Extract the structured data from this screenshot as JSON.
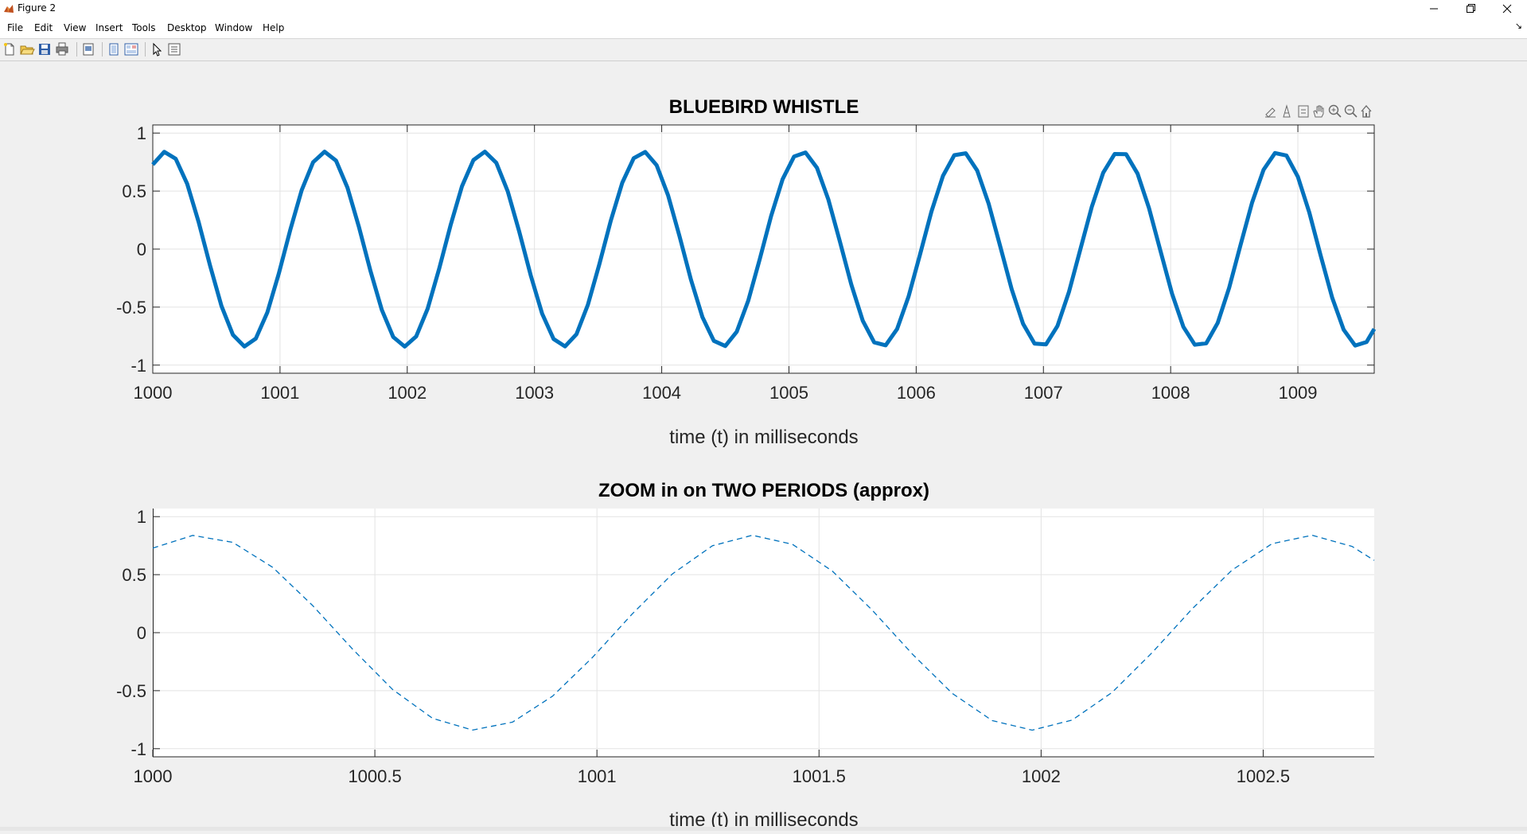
{
  "window": {
    "title": "Figure 2",
    "controls": [
      "minimize",
      "restore",
      "close"
    ]
  },
  "menu": [
    "File",
    "Edit",
    "View",
    "Insert",
    "Tools",
    "Desktop",
    "Window",
    "Help"
  ],
  "toolbar": [
    "new-figure-icon",
    "open-file-icon",
    "save-icon",
    "print-icon",
    "print-preview-icon",
    "hide-plot-tools-icon",
    "show-plot-tools-icon",
    "edit-plot-arrow-icon",
    "property-inspector-icon"
  ],
  "axes_toolbar": [
    "brush-icon",
    "data-tips-icon",
    "rotate-icon",
    "pan-hand-icon",
    "zoom-in-icon",
    "zoom-out-icon",
    "home-restore-icon"
  ],
  "colors": {
    "series": "#0072BD",
    "axes_bg": "#ffffff",
    "figure_bg": "#f0f0f0",
    "grid": "#e3e3e3"
  },
  "chart_data": [
    {
      "type": "line",
      "title": "BLUEBIRD WHISTLE",
      "xlabel": "time (t) in milliseconds",
      "ylabel": "",
      "xlim": [
        1000,
        1009.6
      ],
      "ylim": [
        -1.07,
        1.07
      ],
      "xticks": [
        1000,
        1001,
        1002,
        1003,
        1004,
        1005,
        1006,
        1007,
        1008,
        1009
      ],
      "xtick_labels": [
        "1000",
        "1001",
        "1002",
        "1003",
        "1004",
        "1005",
        "1006",
        "1007",
        "1008",
        "1009"
      ],
      "yticks": [
        1,
        0.5,
        0,
        -0.5,
        -1
      ],
      "ytick_labels": [
        "1",
        "0.5",
        "0",
        "-0.5",
        "-1"
      ],
      "grid": true,
      "line_style": "solid",
      "line_width": "thick",
      "signal": {
        "amplitude": 0.84,
        "frequency_khz": 0.8,
        "phase": 1.05,
        "sample_period_ms": 0.09
      },
      "series": [
        {
          "values": "sampled sine, amplitude 0.84, period 1.25 ms"
        }
      ]
    },
    {
      "type": "line",
      "title": "ZOOM in on TWO PERIODS (approx)",
      "xlabel": "time (t) in milliseconds",
      "ylabel": "",
      "xlim": [
        1000,
        1002.75
      ],
      "ylim": [
        -1.07,
        1.07
      ],
      "xticks": [
        1000,
        1000.5,
        1001,
        1001.5,
        1002,
        1002.5
      ],
      "xtick_labels": [
        "1000",
        "1000.5",
        "1001",
        "1001.5",
        "1002",
        "1002.5"
      ],
      "yticks": [
        1,
        0.5,
        0,
        -0.5,
        -1
      ],
      "ytick_labels": [
        "1",
        "0.5",
        "0",
        "-0.5",
        "-1"
      ],
      "grid": true,
      "line_style": "dashed",
      "line_width": "thin",
      "signal": {
        "amplitude": 0.84,
        "frequency_khz": 0.8,
        "phase": 1.05,
        "sample_period_ms": 0.09
      },
      "series": [
        {
          "values": "sampled sine, amplitude 0.84, period 1.25 ms"
        }
      ]
    }
  ]
}
